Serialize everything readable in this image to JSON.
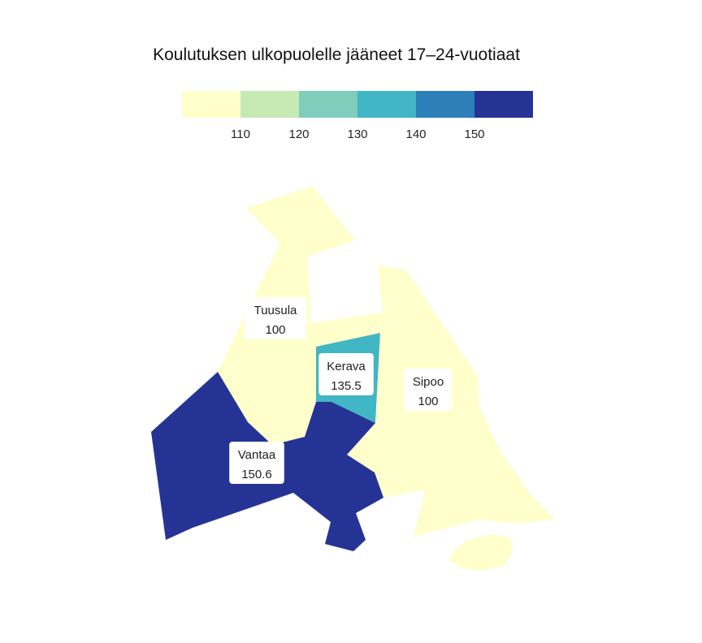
{
  "chart_data": {
    "type": "choropleth",
    "title": "Koulutuksen ulkopuolelle jääneet 17–24-vuotiaat",
    "legend": {
      "breaks": [
        110,
        120,
        130,
        140,
        150
      ],
      "colors": [
        "#ffffcc",
        "#c7e9b4",
        "#7fcdbb",
        "#41b6c4",
        "#2c7fb8",
        "#253494"
      ]
    },
    "regions": [
      {
        "name": "Tuusula",
        "value": "100",
        "color": "#ffffcc"
      },
      {
        "name": "Kerava",
        "value": "135.5",
        "color": "#41b6c4"
      },
      {
        "name": "Sipoo",
        "value": "100",
        "color": "#ffffcc"
      },
      {
        "name": "Vantaa",
        "value": "150.6",
        "color": "#253494"
      }
    ]
  }
}
